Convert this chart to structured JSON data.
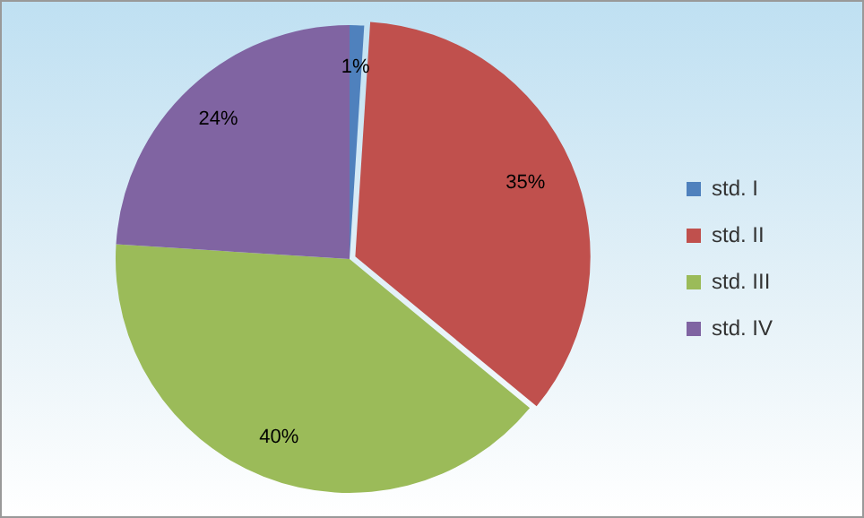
{
  "chart_data": {
    "type": "pie",
    "categories": [
      "std. I",
      "std. II",
      "std. III",
      "std. IV"
    ],
    "values": [
      1,
      35,
      40,
      24
    ],
    "value_labels": [
      "1%",
      "35%",
      "40%",
      "24%"
    ],
    "colors": [
      "#4f81bd",
      "#c0504d",
      "#9bbb59",
      "#8064a2"
    ],
    "legend": "right"
  }
}
